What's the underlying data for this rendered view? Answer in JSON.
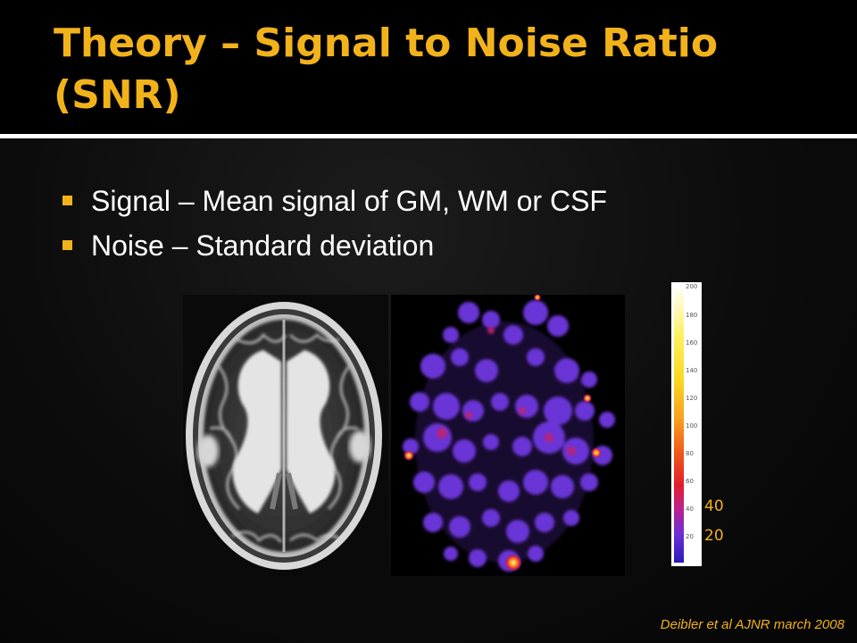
{
  "slide": {
    "title": "Theory – Signal to Noise Ratio (SNR)",
    "bullets": [
      "Signal – Mean signal of GM, WM or CSF",
      "Noise – Standard deviation"
    ],
    "colorbar": {
      "ticks": [
        "200",
        "180",
        "160",
        "140",
        "120",
        "100",
        "80",
        "60",
        "40",
        "20"
      ],
      "highlight_labels": [
        "40",
        "20"
      ]
    },
    "citation": "Deibler et al AJNR march 2008"
  },
  "colors": {
    "accent": "#f2b21b",
    "background": "#0b0b0b",
    "title_bar": "#000000",
    "divider": "#ffffff"
  }
}
